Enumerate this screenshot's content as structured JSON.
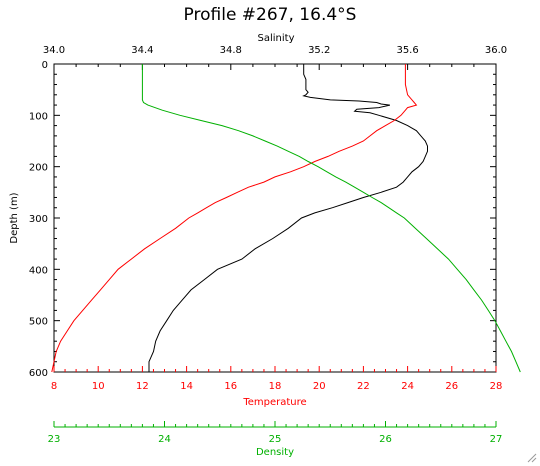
{
  "colors": {
    "salinity": "#000000",
    "temperature": "#ff0000",
    "density": "#00b000",
    "axis": "#000000"
  },
  "chart_data": {
    "type": "line",
    "title": "Profile #267, 16.4°S",
    "ylabel": "Depth (m)",
    "ylim": [
      0,
      600
    ],
    "y_inverted": true,
    "y_ticks": [
      0,
      100,
      200,
      300,
      400,
      500,
      600
    ],
    "y_tick_labels": [
      "0",
      "100",
      "200",
      "300",
      "400",
      "500",
      "600"
    ],
    "axes": {
      "salinity": {
        "label": "Salinity",
        "position": "top",
        "range": [
          34.0,
          36.0
        ],
        "ticks": [
          34.0,
          34.4,
          34.8,
          35.2,
          35.6,
          36.0
        ],
        "tick_labels": [
          "34.0",
          "34.4",
          "34.8",
          "35.2",
          "35.6",
          "36.0"
        ]
      },
      "temperature": {
        "label": "Temperature",
        "position": "bottom",
        "range": [
          8,
          28
        ],
        "ticks": [
          8,
          10,
          12,
          14,
          16,
          18,
          20,
          22,
          24,
          26,
          28
        ],
        "tick_labels": [
          "8",
          "10",
          "12",
          "14",
          "16",
          "18",
          "20",
          "22",
          "24",
          "26",
          "28"
        ]
      },
      "density": {
        "label": "Density",
        "position": "bottom-separate",
        "range": [
          23,
          27
        ],
        "ticks": [
          23,
          24,
          25,
          26,
          27
        ],
        "tick_labels": [
          "23",
          "24",
          "25",
          "26",
          "27"
        ]
      }
    },
    "series": [
      {
        "axis": "salinity",
        "depth": [
          0,
          10,
          20,
          30,
          40,
          50,
          55,
          60,
          62,
          65,
          70,
          72,
          75,
          78,
          80,
          85,
          88,
          92,
          95,
          100,
          110,
          120,
          130,
          140,
          150,
          160,
          170,
          180,
          190,
          200,
          210,
          220,
          230,
          240,
          250,
          260,
          270,
          280,
          290,
          300,
          320,
          340,
          360,
          380,
          400,
          420,
          440,
          460,
          480,
          500,
          520,
          540,
          560,
          580,
          600
        ],
        "values": [
          35.13,
          35.13,
          35.13,
          35.14,
          35.14,
          35.14,
          35.15,
          35.14,
          35.13,
          35.16,
          35.25,
          35.38,
          35.46,
          35.48,
          35.52,
          35.47,
          35.37,
          35.36,
          35.43,
          35.47,
          35.55,
          35.6,
          35.64,
          35.66,
          35.68,
          35.69,
          35.69,
          35.68,
          35.67,
          35.65,
          35.62,
          35.6,
          35.58,
          35.55,
          35.48,
          35.4,
          35.33,
          35.26,
          35.18,
          35.12,
          35.06,
          34.99,
          34.91,
          34.85,
          34.74,
          34.68,
          34.62,
          34.58,
          34.54,
          34.51,
          34.48,
          34.46,
          34.45,
          34.43,
          34.43
        ]
      },
      {
        "axis": "temperature",
        "depth": [
          0,
          20,
          40,
          60,
          70,
          75,
          80,
          85,
          90,
          100,
          110,
          120,
          130,
          140,
          150,
          160,
          170,
          180,
          190,
          200,
          210,
          220,
          230,
          240,
          250,
          260,
          270,
          280,
          290,
          300,
          320,
          340,
          360,
          380,
          400,
          420,
          440,
          460,
          480,
          500,
          520,
          540,
          560,
          580,
          600
        ],
        "values": [
          23.9,
          23.9,
          23.9,
          24.0,
          24.2,
          24.3,
          24.4,
          24.0,
          23.9,
          23.7,
          23.4,
          23.0,
          22.6,
          22.3,
          22.0,
          21.5,
          20.9,
          20.4,
          19.8,
          19.3,
          18.7,
          18.0,
          17.5,
          16.8,
          16.3,
          15.8,
          15.3,
          14.9,
          14.5,
          14.1,
          13.5,
          12.8,
          12.1,
          11.5,
          10.9,
          10.5,
          10.1,
          9.7,
          9.3,
          8.9,
          8.6,
          8.3,
          8.1,
          8.0,
          7.9
        ]
      },
      {
        "axis": "density",
        "depth": [
          0,
          20,
          40,
          60,
          70,
          75,
          80,
          90,
          100,
          110,
          120,
          130,
          140,
          150,
          160,
          170,
          180,
          190,
          200,
          210,
          220,
          230,
          240,
          250,
          260,
          270,
          280,
          290,
          300,
          320,
          340,
          360,
          380,
          400,
          420,
          440,
          460,
          480,
          500,
          520,
          540,
          560,
          580,
          600
        ],
        "values": [
          23.8,
          23.8,
          23.8,
          23.8,
          23.8,
          23.81,
          23.85,
          23.98,
          24.14,
          24.33,
          24.52,
          24.67,
          24.8,
          24.91,
          25.02,
          25.12,
          25.22,
          25.3,
          25.39,
          25.47,
          25.55,
          25.64,
          25.72,
          25.8,
          25.88,
          25.96,
          26.03,
          26.1,
          26.17,
          26.27,
          26.37,
          26.47,
          26.57,
          26.65,
          26.73,
          26.8,
          26.87,
          26.93,
          26.99,
          27.04,
          27.09,
          27.14,
          27.18,
          27.22
        ]
      }
    ]
  }
}
